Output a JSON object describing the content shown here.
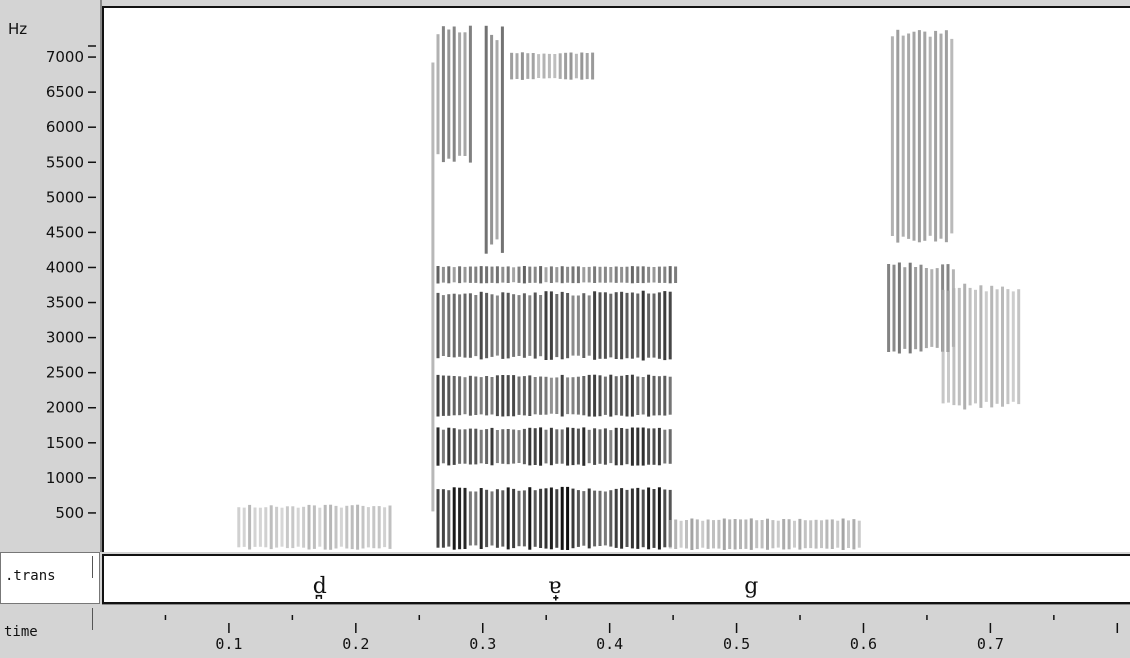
{
  "chart_data": {
    "type": "heatmap",
    "title": "",
    "y_axis_unit": "Hz",
    "y_ticks": [
      500,
      1000,
      1500,
      2000,
      2500,
      3000,
      3500,
      4000,
      4500,
      5000,
      5500,
      6000,
      6500,
      7000
    ],
    "ylim": [
      0,
      7500
    ],
    "x_ticks": [
      0.1,
      0.2,
      0.3,
      0.4,
      0.5,
      0.6,
      0.7
    ],
    "xlim": [
      0.0,
      0.81
    ],
    "x_axis_label": "time",
    "tiers": [
      {
        "name": ".trans",
        "segments": [
          {
            "label": "d̪",
            "time": 0.17
          },
          {
            "label": "ɐ̟",
            "time": 0.355
          },
          {
            "label": "g",
            "time": 0.51
          }
        ]
      }
    ],
    "energy_regions": [
      {
        "t0": 0.105,
        "t1": 0.225,
        "f0": 0,
        "f1": 650,
        "intensity": 0.22
      },
      {
        "t0": 0.258,
        "t1": 0.262,
        "f0": 0,
        "f1": 7500,
        "intensity": 0.45
      },
      {
        "t0": 0.262,
        "t1": 0.445,
        "f0": 0,
        "f1": 900,
        "intensity": 0.95
      },
      {
        "t0": 0.262,
        "t1": 0.445,
        "f0": 1200,
        "f1": 1750,
        "intensity": 0.85
      },
      {
        "t0": 0.262,
        "t1": 0.445,
        "f0": 1900,
        "f1": 2500,
        "intensity": 0.75
      },
      {
        "t0": 0.262,
        "t1": 0.445,
        "f0": 2700,
        "f1": 3700,
        "intensity": 0.8
      },
      {
        "t0": 0.262,
        "t1": 0.45,
        "f0": 3800,
        "f1": 4050,
        "intensity": 0.6
      },
      {
        "t0": 0.262,
        "t1": 0.29,
        "f0": 5500,
        "f1": 7500,
        "intensity": 0.5
      },
      {
        "t0": 0.3,
        "t1": 0.315,
        "f0": 4200,
        "f1": 7500,
        "intensity": 0.55
      },
      {
        "t0": 0.32,
        "t1": 0.385,
        "f0": 6700,
        "f1": 7100,
        "intensity": 0.4
      },
      {
        "t0": 0.445,
        "t1": 0.595,
        "f0": 0,
        "f1": 450,
        "intensity": 0.3
      },
      {
        "t0": 0.617,
        "t1": 0.67,
        "f0": 2800,
        "f1": 4100,
        "intensity": 0.5
      },
      {
        "t0": 0.62,
        "t1": 0.67,
        "f0": 4300,
        "f1": 7500,
        "intensity": 0.4
      },
      {
        "t0": 0.66,
        "t1": 0.72,
        "f0": 2000,
        "f1": 3800,
        "intensity": 0.25
      }
    ]
  }
}
